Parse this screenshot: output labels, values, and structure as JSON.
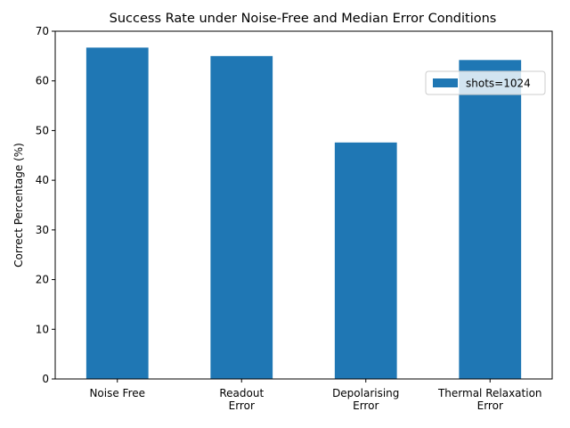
{
  "chart_data": {
    "type": "bar",
    "title": "Success Rate under Noise-Free and Median Error Conditions",
    "xlabel": "",
    "ylabel": "Correct Percentage (%)",
    "categories": [
      [
        "Noise Free"
      ],
      [
        "Readout",
        "Error"
      ],
      [
        "Depolarising",
        "Error"
      ],
      [
        "Thermal Relaxation",
        "Error"
      ]
    ],
    "series": [
      {
        "name": "shots=1024",
        "color": "#1f77b4",
        "values": [
          66.7,
          65.0,
          47.6,
          64.2
        ]
      }
    ],
    "ylim": [
      0,
      70
    ],
    "yticks": [
      0,
      10,
      20,
      30,
      40,
      50,
      60,
      70
    ],
    "grid": false,
    "legend_position": "upper-right"
  }
}
